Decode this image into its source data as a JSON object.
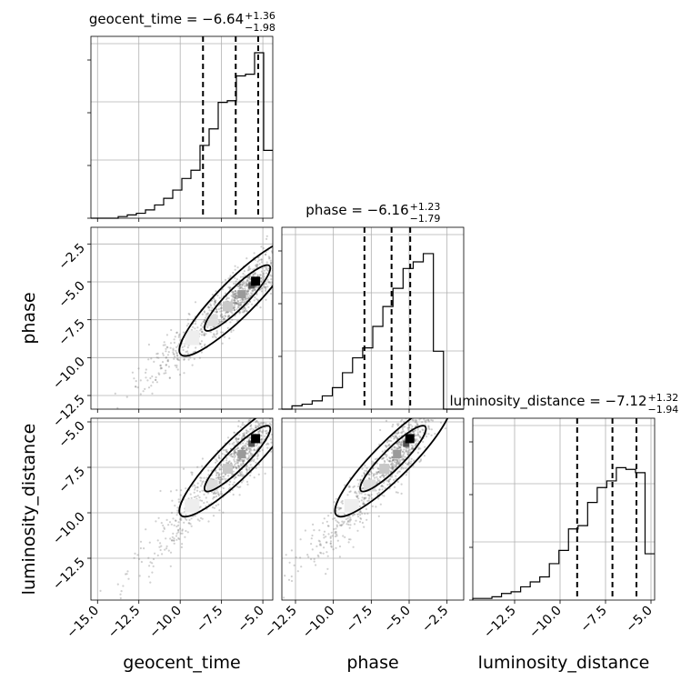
{
  "chart_data": {
    "type": "corner",
    "parameters": [
      {
        "name": "geocent_time",
        "title": "geocent_time = −6.64",
        "sup": "+1.36",
        "sub": "−1.98",
        "range": [
          -15.4,
          -4.4
        ],
        "xticks": [
          "−15.0",
          "−12.5",
          "−10.0",
          "−7.5",
          "−5.0"
        ],
        "xtick_values": [
          -15,
          -12.5,
          -10,
          -7.5,
          -5
        ],
        "quantiles": [
          -8.62,
          -6.64,
          -5.28
        ],
        "hist_values": [
          0,
          0,
          0,
          0.01,
          0.02,
          0.03,
          0.05,
          0.08,
          0.12,
          0.17,
          0.24,
          0.29,
          0.44,
          0.54,
          0.7,
          0.71,
          0.86,
          0.87,
          1.0,
          0.41
        ]
      },
      {
        "name": "phase",
        "title": "phase = −6.16",
        "sup": "+1.23",
        "sub": "−1.79",
        "range": [
          -13.4,
          -1.4
        ],
        "xticks": [
          "−12.5",
          "−10.0",
          "−7.5",
          "−5.0",
          "−2.5"
        ],
        "xtick_values": [
          -12.5,
          -10,
          -7.5,
          -5,
          -2.5
        ],
        "yticks": [
          "−2.5",
          "−5.0",
          "−7.5",
          "−10.0",
          "−12.5"
        ],
        "ytick_values": [
          -2.5,
          -5,
          -7.5,
          -10,
          -12.5
        ],
        "quantiles": [
          -7.95,
          -6.16,
          -4.93
        ],
        "hist_values": [
          0,
          0.02,
          0.03,
          0.05,
          0.08,
          0.13,
          0.22,
          0.31,
          0.37,
          0.5,
          0.62,
          0.73,
          0.85,
          0.89,
          0.94,
          0.35,
          0,
          0
        ]
      },
      {
        "name": "luminosity_distance",
        "title": "luminosity_distance = −7.12",
        "sup": "+1.32",
        "sub": "−1.94",
        "range": [
          -14.8,
          -4.8
        ],
        "xticks": [
          "−12.5",
          "−10.0",
          "−7.5",
          "−5.0"
        ],
        "xtick_values": [
          -12.5,
          -10,
          -7.5,
          -5
        ],
        "yticks": [
          "−5.0",
          "−7.5",
          "−10.0",
          "−12.5"
        ],
        "ytick_values": [
          -5,
          -7.5,
          -10,
          -12.5
        ],
        "quantiles": [
          -9.06,
          -7.12,
          -5.8
        ],
        "hist_values": [
          0.01,
          0.01,
          0.02,
          0.04,
          0.05,
          0.08,
          0.11,
          0.14,
          0.22,
          0.3,
          0.43,
          0.45,
          0.59,
          0.68,
          0.72,
          0.8,
          0.79,
          0.77,
          0.28
        ]
      }
    ],
    "xlabels": [
      "geocent_time",
      "phase",
      "luminosity_distance"
    ],
    "ylabels": [
      "phase",
      "luminosity_distance"
    ],
    "grid": true,
    "contour_levels": [
      0.39,
      0.86
    ],
    "colors": {
      "line": "#000000",
      "grid": "#b0b0b0",
      "points": "#777777"
    }
  }
}
